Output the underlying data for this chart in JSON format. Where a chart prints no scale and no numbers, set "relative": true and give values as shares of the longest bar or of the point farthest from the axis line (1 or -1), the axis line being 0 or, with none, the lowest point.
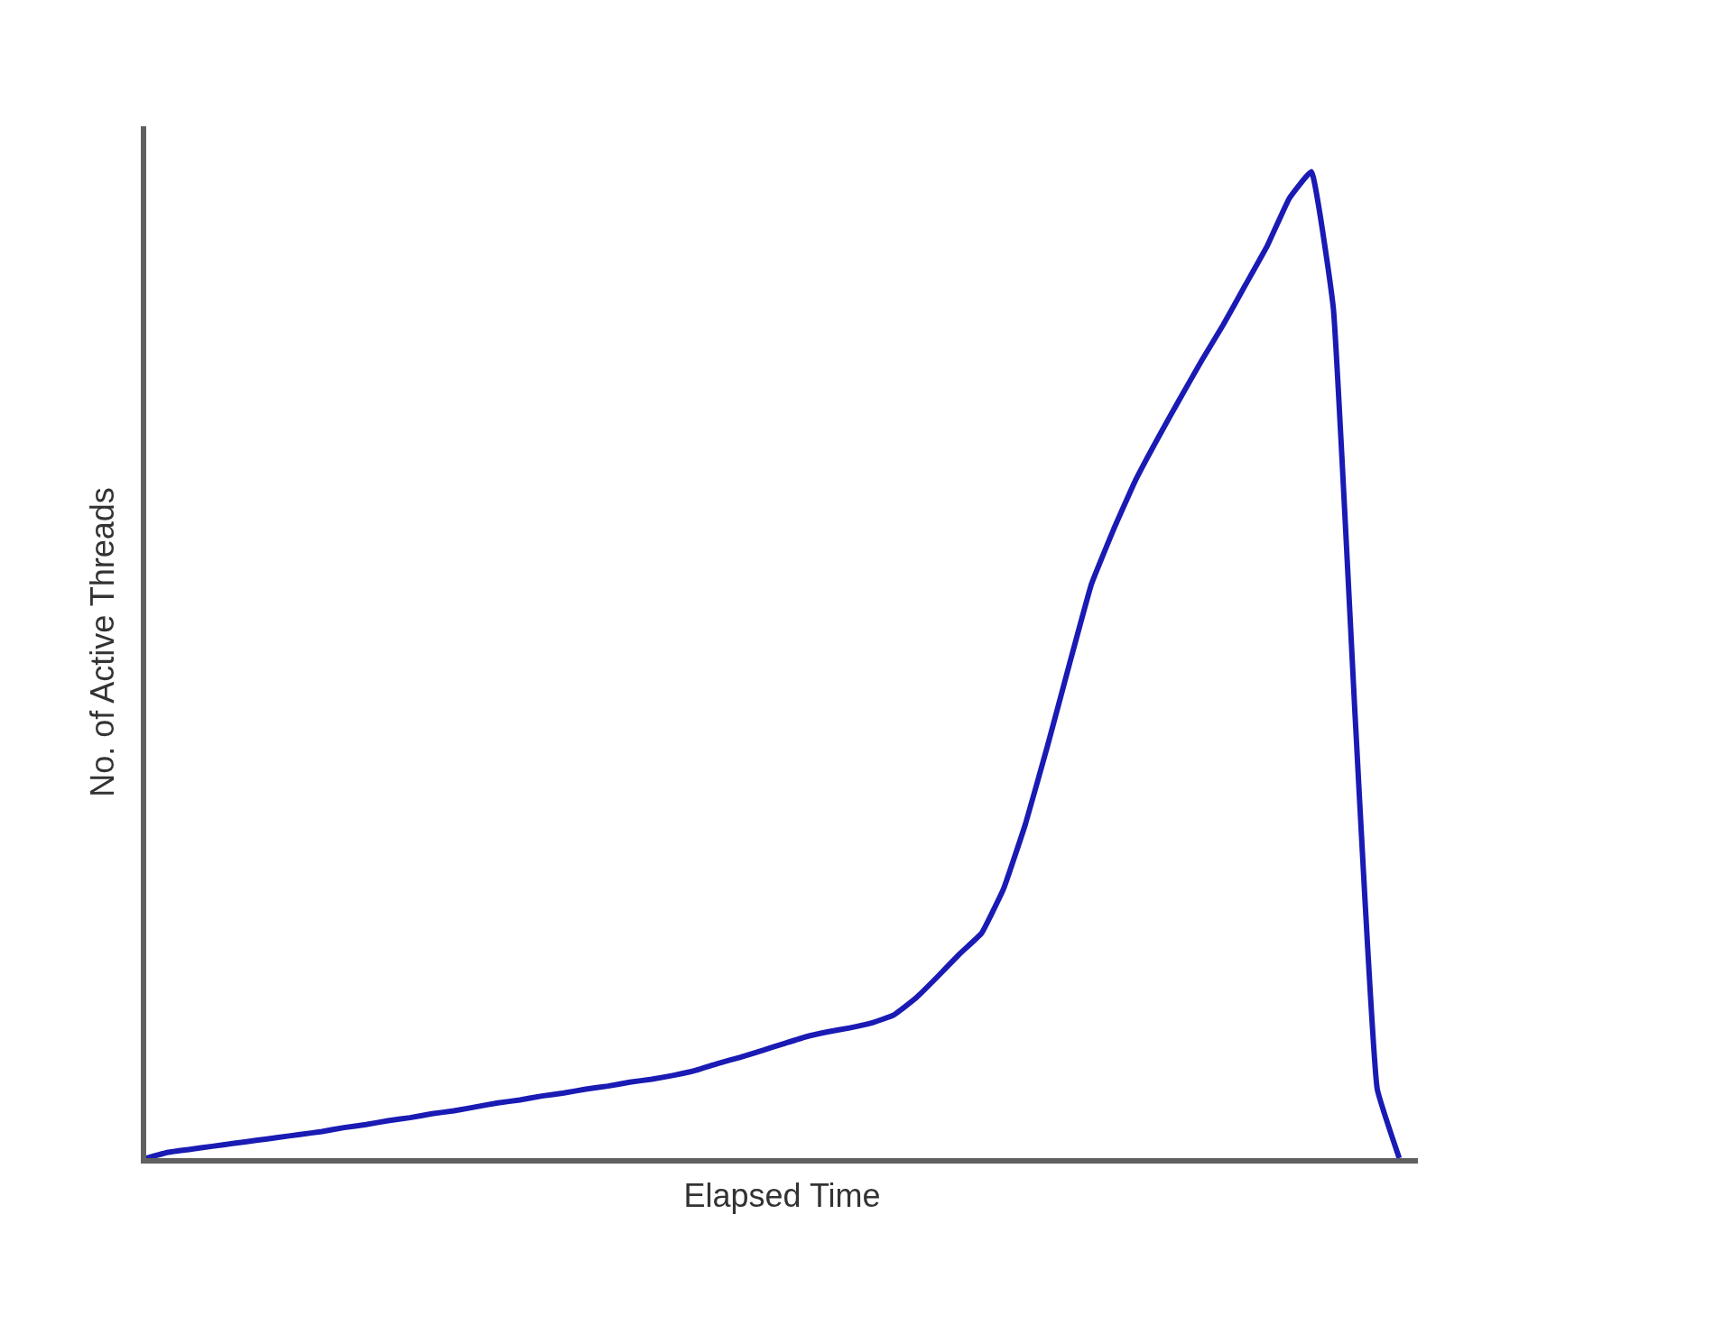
{
  "chart_data": {
    "type": "line",
    "relative": true,
    "xlabel": "Elapsed Time",
    "ylabel": "No. of Active Threads",
    "categories": [
      null,
      null,
      null,
      null,
      null,
      null,
      null,
      null,
      null,
      null,
      null,
      null,
      null,
      null,
      null,
      null,
      null,
      null,
      null,
      null,
      null,
      null,
      null,
      null,
      null,
      null,
      null,
      null,
      null,
      null,
      null,
      null,
      null,
      null,
      null,
      null,
      null,
      null,
      null,
      null,
      null,
      null,
      null,
      null,
      null,
      null,
      null,
      null,
      null,
      null,
      null,
      null,
      null,
      null,
      null,
      null,
      null,
      null
    ],
    "series": [
      {
        "color": "#1a1ab4",
        "values": [
          0,
          0.006,
          0.009,
          0.012,
          0.015,
          0.018,
          0.021,
          0.024,
          0.027,
          0.031,
          0.034,
          0.038,
          0.041,
          0.045,
          0.048,
          0.052,
          0.056,
          0.059,
          0.063,
          0.066,
          0.07,
          0.073,
          0.077,
          0.08,
          0.084,
          0.089,
          0.096,
          0.102,
          0.109,
          0.116,
          0.123,
          0.128,
          0.132,
          0.137,
          0.145,
          0.162,
          0.184,
          0.207,
          0.228,
          0.273,
          0.339,
          0.418,
          0.501,
          0.582,
          0.637,
          0.687,
          0.729,
          0.769,
          0.808,
          0.845,
          0.885,
          0.925,
          0.973,
          1,
          0.862,
          0.445,
          0.07,
          0
        ]
      }
    ],
    "marker": "none",
    "line_style": "solid"
  }
}
